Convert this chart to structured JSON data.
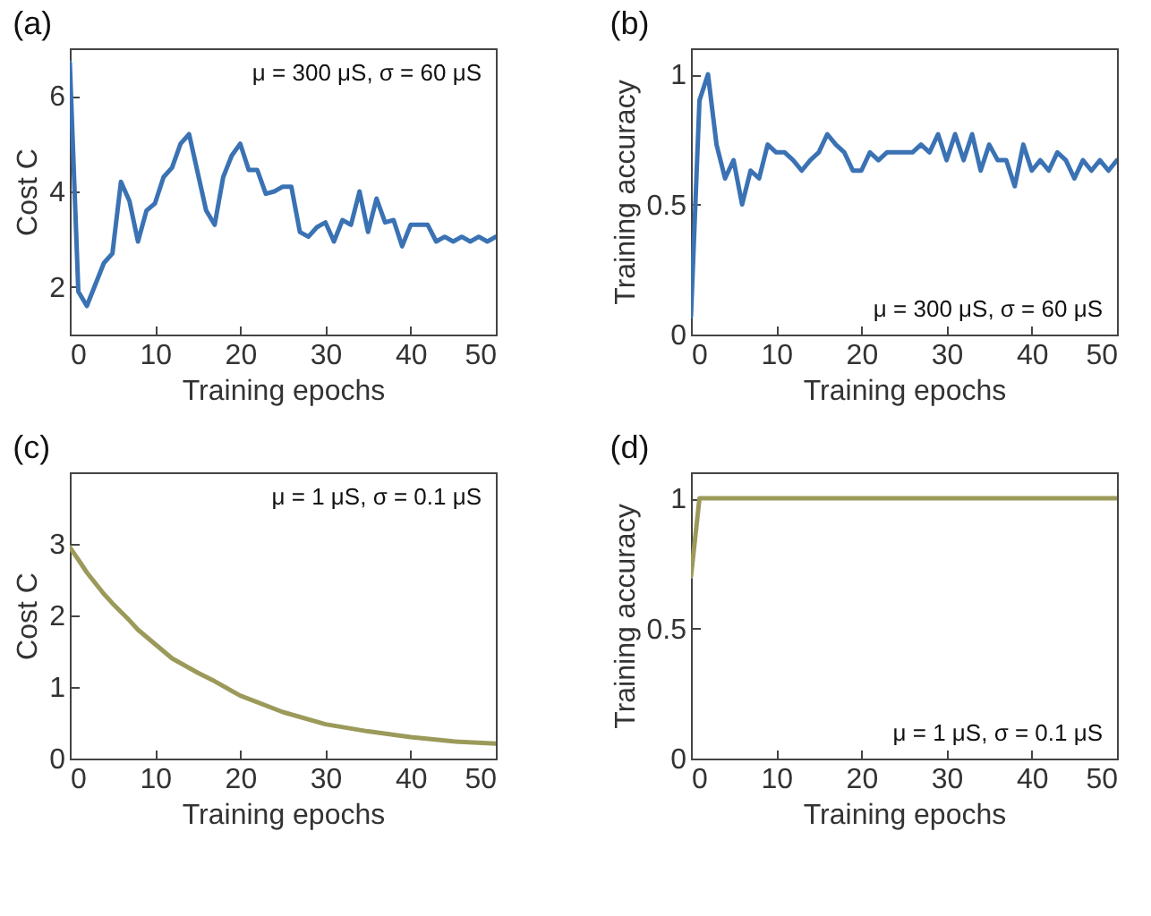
{
  "chart_data": [
    {
      "type": "line",
      "title": "(a)",
      "xlabel": "Training epochs",
      "ylabel": "Cost C",
      "annotations": [
        "μ = 300 μS, σ = 60 μS"
      ],
      "xlim": [
        0,
        50
      ],
      "xticks": [
        0,
        10,
        20,
        30,
        40,
        50
      ],
      "ylim": [
        1,
        7
      ],
      "yticks": [
        2,
        4,
        6
      ],
      "x": [
        0,
        1,
        2,
        3,
        4,
        5,
        6,
        7,
        8,
        9,
        10,
        11,
        12,
        13,
        14,
        15,
        16,
        17,
        18,
        19,
        20,
        21,
        22,
        23,
        24,
        25,
        26,
        27,
        28,
        29,
        30,
        31,
        32,
        33,
        34,
        35,
        36,
        37,
        38,
        39,
        40,
        41,
        42,
        43,
        44,
        45,
        46,
        47,
        48,
        49,
        50
      ],
      "series": [
        {
          "color": "#3a72b4",
          "values": [
            6.7,
            1.9,
            1.6,
            2.05,
            2.5,
            2.7,
            4.2,
            3.8,
            2.95,
            3.6,
            3.75,
            4.3,
            4.5,
            5.0,
            5.2,
            4.4,
            3.6,
            3.3,
            4.3,
            4.75,
            5.0,
            4.45,
            4.45,
            3.95,
            4.0,
            4.1,
            4.1,
            3.15,
            3.05,
            3.25,
            3.35,
            2.95,
            3.4,
            3.3,
            4.0,
            3.15,
            3.85,
            3.35,
            3.4,
            2.85,
            3.3,
            3.3,
            3.3,
            2.95,
            3.05,
            2.95,
            3.05,
            2.95,
            3.05,
            2.95,
            3.05
          ]
        }
      ]
    },
    {
      "type": "line",
      "title": "(b)",
      "xlabel": "Training epochs",
      "ylabel": "Training accuracy",
      "annotations": [
        "μ = 300 μS, σ = 60 μS"
      ],
      "xlim": [
        0,
        50
      ],
      "xticks": [
        0,
        10,
        20,
        30,
        40,
        50
      ],
      "ylim": [
        0,
        1.1
      ],
      "yticks": [
        0,
        0.5,
        1
      ],
      "x": [
        0,
        1,
        2,
        3,
        4,
        5,
        6,
        7,
        8,
        9,
        10,
        11,
        12,
        13,
        14,
        15,
        16,
        17,
        18,
        19,
        20,
        21,
        22,
        23,
        24,
        25,
        26,
        27,
        28,
        29,
        30,
        31,
        32,
        33,
        34,
        35,
        36,
        37,
        38,
        39,
        40,
        41,
        42,
        43,
        44,
        45,
        46,
        47,
        48,
        49,
        50
      ],
      "series": [
        {
          "color": "#3a72b4",
          "values": [
            0.07,
            0.9,
            1.0,
            0.73,
            0.6,
            0.67,
            0.5,
            0.63,
            0.6,
            0.73,
            0.7,
            0.7,
            0.67,
            0.63,
            0.67,
            0.7,
            0.77,
            0.73,
            0.7,
            0.63,
            0.63,
            0.7,
            0.67,
            0.7,
            0.7,
            0.7,
            0.7,
            0.73,
            0.7,
            0.77,
            0.67,
            0.77,
            0.67,
            0.77,
            0.63,
            0.73,
            0.67,
            0.67,
            0.57,
            0.73,
            0.63,
            0.67,
            0.63,
            0.7,
            0.67,
            0.6,
            0.67,
            0.63,
            0.67,
            0.63,
            0.67
          ]
        }
      ]
    },
    {
      "type": "line",
      "title": "(c)",
      "xlabel": "Training epochs",
      "ylabel": "Cost C",
      "annotations": [
        "μ = 1 μS, σ = 0.1 μS"
      ],
      "xlim": [
        0,
        50
      ],
      "xticks": [
        0,
        10,
        20,
        30,
        40,
        50
      ],
      "ylim": [
        0,
        4
      ],
      "yticks": [
        0,
        1,
        2,
        3
      ],
      "x": [
        0,
        1,
        2,
        3,
        4,
        5,
        6,
        7,
        8,
        9,
        10,
        12,
        15,
        17,
        20,
        25,
        30,
        35,
        40,
        45,
        50
      ],
      "series": [
        {
          "color": "#9c9a5a",
          "values": [
            2.95,
            2.78,
            2.6,
            2.45,
            2.3,
            2.17,
            2.05,
            1.93,
            1.8,
            1.7,
            1.6,
            1.4,
            1.2,
            1.08,
            0.88,
            0.65,
            0.48,
            0.38,
            0.3,
            0.24,
            0.21
          ]
        }
      ]
    },
    {
      "type": "line",
      "title": "(d)",
      "xlabel": "Training epochs",
      "ylabel": "Training accuracy",
      "annotations": [
        "μ = 1 μS, σ = 0.1 μS"
      ],
      "xlim": [
        0,
        50
      ],
      "xticks": [
        0,
        10,
        20,
        30,
        40,
        50
      ],
      "ylim": [
        0,
        1.1
      ],
      "yticks": [
        0,
        0.5,
        1
      ],
      "x": [
        0,
        1,
        50
      ],
      "series": [
        {
          "color": "#9c9a5a",
          "values": [
            0.7,
            1,
            1
          ]
        }
      ]
    }
  ]
}
